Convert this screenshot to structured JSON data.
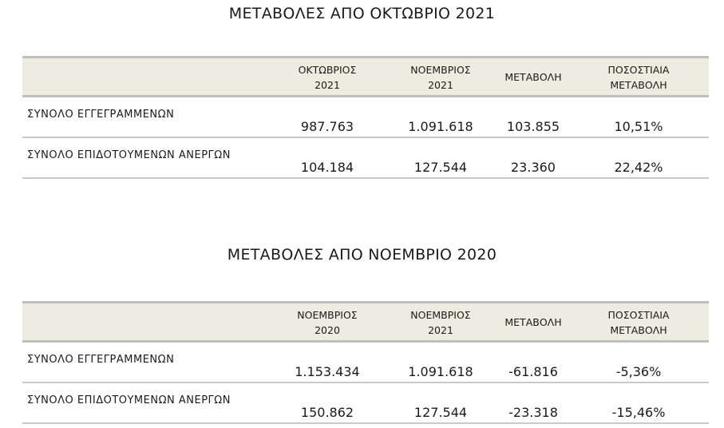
{
  "tables": [
    {
      "title": "ΜΕΤΑΒΟΛΕΣ ΑΠΟ ΟΚΤΩΒΡΙΟ 2021",
      "headers": [
        [
          "ΟΚΤΩΒΡΙΟΣ",
          "2021"
        ],
        [
          "ΝΟΕΜΒΡΙΟΣ",
          "2021"
        ],
        [
          "ΜΕΤΑΒΟΛΗ"
        ],
        [
          "ΠΟΣΟΣΤΙΑΙΑ",
          "ΜΕΤΑΒΟΛΗ"
        ]
      ],
      "rows": [
        {
          "label": "ΣΥΝΟΛΟ ΕΓΓΕΓΡΑΜΜΕΝΩΝ",
          "values": [
            "987.763",
            "1.091.618",
            "103.855",
            "10,51%"
          ]
        },
        {
          "label": "ΣΥΝΟΛΟ ΕΠΙΔΟΤΟΥΜΕΝΩΝ ΑΝΕΡΓΩΝ",
          "values": [
            "104.184",
            "127.544",
            "23.360",
            "22,42%"
          ]
        }
      ]
    },
    {
      "title": "ΜΕΤΑΒΟΛΕΣ ΑΠΟ ΝΟΕΜΒΡΙΟ 2020",
      "headers": [
        [
          "ΝΟΕΜΒΡΙΟΣ",
          "2020"
        ],
        [
          "ΝΟΕΜΒΡΙΟΣ",
          "2021"
        ],
        [
          "ΜΕΤΑΒΟΛΗ"
        ],
        [
          "ΠΟΣΟΣΤΙΑΙΑ",
          "ΜΕΤΑΒΟΛΗ"
        ]
      ],
      "rows": [
        {
          "label": "ΣΥΝΟΛΟ ΕΓΓΕΓΡΑΜΜΕΝΩΝ",
          "values": [
            "1.153.434",
            "1.091.618",
            "-61.816",
            "-5,36%"
          ]
        },
        {
          "label": "ΣΥΝΟΛΟ ΕΠΙΔΟΤΟΥΜΕΝΩΝ ΑΝΕΡΓΩΝ",
          "values": [
            "150.862",
            "127.544",
            "-23.318",
            "-15,46%"
          ]
        }
      ]
    }
  ],
  "colors": {
    "header_bg": "#eeece1",
    "rule": "#bfbfbf"
  }
}
